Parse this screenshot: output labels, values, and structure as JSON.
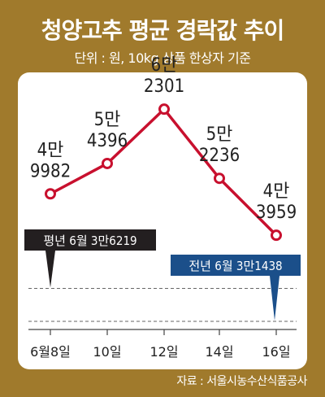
{
  "title": "청양고추 평균 경락값 추이",
  "subtitle": "단위 : 원, 10kg 상품 한상자 기준",
  "source": "자료 : 서울시농수산식품공사",
  "colors": {
    "background": "#a07a2c",
    "line": "#c8102e",
    "callout_prev_year": "#231f20",
    "callout_last_year": "#1b4f8a",
    "dashed": "#666666"
  },
  "chart_data": {
    "type": "line",
    "x": [
      "6월8일",
      "10일",
      "12일",
      "14일",
      "16일"
    ],
    "series": [
      {
        "values": [
          49982,
          54396,
          62301,
          52236,
          43959
        ],
        "labels": [
          [
            "4만",
            "9982"
          ],
          [
            "5만",
            "4396"
          ],
          [
            "6만",
            "2301"
          ],
          [
            "5만",
            "2236"
          ],
          [
            "4만",
            "3959"
          ]
        ]
      }
    ],
    "reference_lines": [
      {
        "label": "평년 6월 3만6219",
        "value": 36219
      },
      {
        "label": "전년 6월 3만1438",
        "value": 31438
      }
    ],
    "ylim": [
      28000,
      68000
    ],
    "grid": false
  }
}
